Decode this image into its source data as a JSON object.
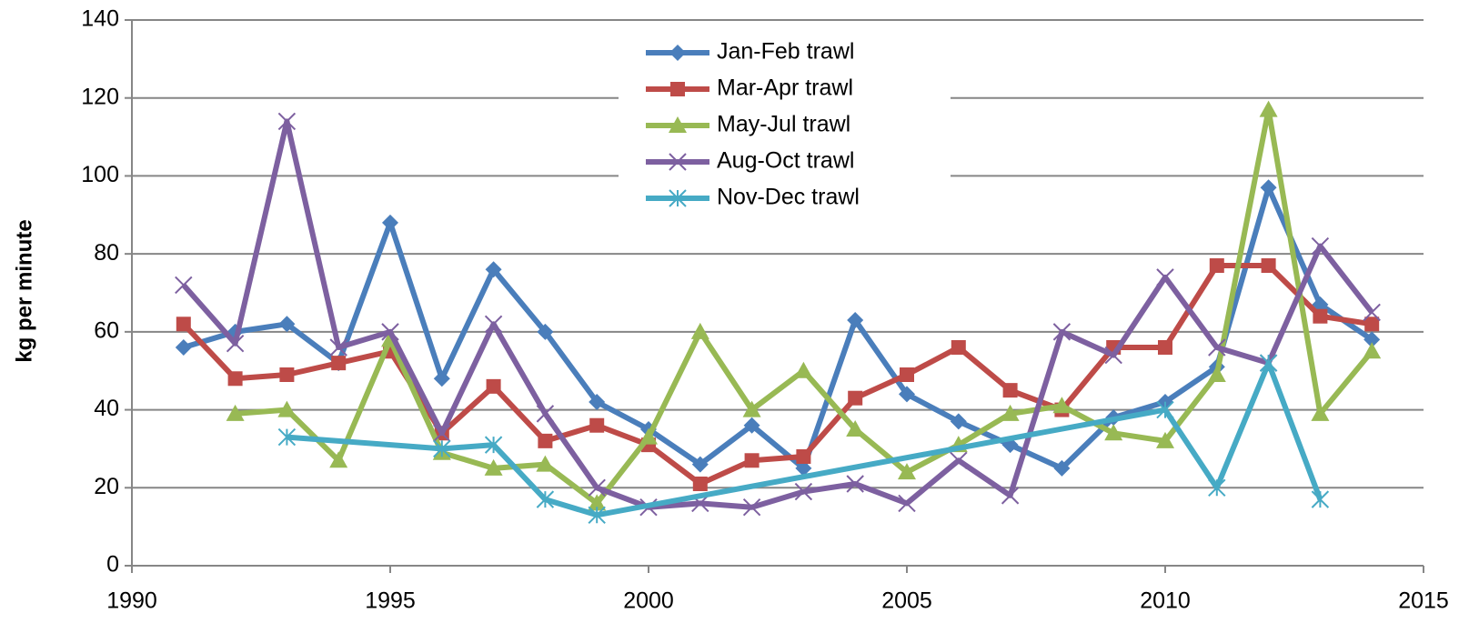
{
  "chart_data": {
    "type": "line",
    "y_label": "kg per minute",
    "xlim": [
      1990,
      2015
    ],
    "xticks": [
      1990,
      1995,
      2000,
      2005,
      2010,
      2015
    ],
    "ylim": [
      0,
      140
    ],
    "yticks": [
      0,
      20,
      40,
      60,
      80,
      100,
      120,
      140
    ],
    "grid": true,
    "legend": "top",
    "series": [
      {
        "name": "Jan-Feb trawl",
        "color": "#4a7ebb",
        "marker": "diamond",
        "x": [
          1991,
          1992,
          1993,
          1994,
          1995,
          1996,
          1997,
          1998,
          1999,
          2000,
          2001,
          2002,
          2003,
          2004,
          2005,
          2006,
          2007,
          2008,
          2009,
          2010,
          2011,
          2012,
          2013,
          2014
        ],
        "values": [
          56,
          60,
          62,
          52,
          88,
          48,
          76,
          60,
          42,
          35,
          26,
          36,
          25,
          63,
          44,
          37,
          31,
          25,
          38,
          42,
          51,
          97,
          67,
          58
        ]
      },
      {
        "name": "Mar-Apr trawl",
        "color": "#be4b48",
        "marker": "square",
        "x": [
          1991,
          1992,
          1993,
          1994,
          1995,
          1996,
          1997,
          1998,
          1999,
          2000,
          2001,
          2002,
          2003,
          2004,
          2005,
          2006,
          2007,
          2008,
          2009,
          2010,
          2011,
          2012,
          2013,
          2014
        ],
        "values": [
          62,
          48,
          49,
          52,
          55,
          34,
          46,
          32,
          36,
          31,
          21,
          27,
          28,
          43,
          49,
          56,
          45,
          40,
          56,
          56,
          77,
          77,
          64,
          62
        ]
      },
      {
        "name": "May-Jul trawl",
        "color": "#98b954",
        "marker": "triangle",
        "x": [
          1992,
          1993,
          1994,
          1995,
          1996,
          1997,
          1998,
          1999,
          2000,
          2001,
          2002,
          2003,
          2004,
          2005,
          2006,
          2007,
          2008,
          2009,
          2010,
          2011,
          2012,
          2013,
          2014
        ],
        "values": [
          39,
          40,
          27,
          58,
          29,
          25,
          26,
          16,
          33,
          60,
          40,
          50,
          35,
          24,
          31,
          39,
          41,
          34,
          32,
          49,
          117,
          39,
          55
        ]
      },
      {
        "name": "Aug-Oct trawl",
        "color": "#7d60a0",
        "marker": "x",
        "x": [
          1991,
          1992,
          1993,
          1994,
          1995,
          1996,
          1997,
          1998,
          1999,
          2000,
          2001,
          2002,
          2003,
          2004,
          2005,
          2006,
          2007,
          2008,
          2009,
          2010,
          2011,
          2012,
          2013,
          2014
        ],
        "values": [
          72,
          57,
          114,
          56,
          60,
          34,
          62,
          39,
          20,
          15,
          16,
          15,
          19,
          21,
          16,
          27,
          18,
          60,
          54,
          74,
          56,
          52,
          82,
          65
        ]
      },
      {
        "name": "Nov-Dec trawl",
        "color": "#46aac5",
        "marker": "star",
        "x": [
          1993,
          1996,
          1997,
          1998,
          1999,
          2010,
          2011,
          2012,
          2013
        ],
        "values": [
          33,
          30,
          31,
          17,
          13,
          40,
          20,
          52,
          17
        ]
      }
    ]
  }
}
